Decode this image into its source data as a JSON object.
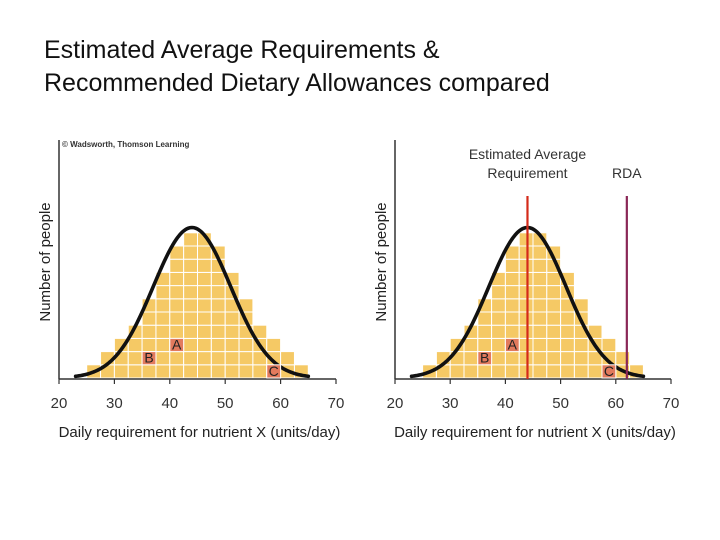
{
  "slide": {
    "title_line1": "Estimated Average Requirements &",
    "title_line2": "Recommended Dietary Allowances compared"
  },
  "colors": {
    "cell_fill": "#f5c965",
    "cell_line": "#ffffff",
    "curve": "#111111",
    "axis": "#333333",
    "ear_line": "#d42a1a",
    "rda_line": "#8a2757",
    "marker_fill": "#e27a5d",
    "marker_text": "#222222"
  },
  "chart_data": [
    {
      "type": "bar",
      "id": "left",
      "copyright": "© Wadsworth, Thomson Learning",
      "xlabel": "Daily requirement for nutrient X (units/day)",
      "ylabel": "Number of people",
      "xlim": [
        20,
        70
      ],
      "ylim": [
        0,
        14
      ],
      "xticks": [
        20,
        30,
        40,
        50,
        60,
        70
      ],
      "bin_width": 2.5,
      "bin_starts": [
        25,
        27.5,
        30,
        32.5,
        35,
        37.5,
        40,
        42.5,
        45,
        47.5,
        50,
        52.5,
        55,
        57.5,
        60,
        62.5
      ],
      "people": [
        1,
        2,
        3,
        4,
        6,
        8,
        10,
        11,
        11,
        10,
        8,
        6,
        4,
        3,
        2,
        1
      ],
      "curve": {
        "type": "normal",
        "mean": 44,
        "sd": 7,
        "peak": 11.4,
        "x_range": [
          23,
          65
        ]
      },
      "markers": [
        {
          "label": "A",
          "x": 40,
          "people": 3
        },
        {
          "label": "B",
          "x": 35,
          "people": 2
        },
        {
          "label": "C",
          "x": 57.5,
          "people": 1
        }
      ],
      "reference_lines": []
    },
    {
      "type": "bar",
      "id": "right",
      "xlabel": "Daily requirement for nutrient X (units/day)",
      "ylabel": "Number of people",
      "xlim": [
        20,
        70
      ],
      "ylim": [
        0,
        14
      ],
      "xticks": [
        20,
        30,
        40,
        50,
        60,
        70
      ],
      "bin_width": 2.5,
      "bin_starts": [
        25,
        27.5,
        30,
        32.5,
        35,
        37.5,
        40,
        42.5,
        45,
        47.5,
        50,
        52.5,
        55,
        57.5,
        60,
        62.5
      ],
      "people": [
        1,
        2,
        3,
        4,
        6,
        8,
        10,
        11,
        11,
        10,
        8,
        6,
        4,
        3,
        2,
        1
      ],
      "curve": {
        "type": "normal",
        "mean": 44,
        "sd": 7,
        "peak": 11.4,
        "x_range": [
          23,
          65
        ]
      },
      "markers": [
        {
          "label": "A",
          "x": 40,
          "people": 3
        },
        {
          "label": "B",
          "x": 35,
          "people": 2
        },
        {
          "label": "C",
          "x": 57.5,
          "people": 1
        }
      ],
      "reference_lines": [
        {
          "name": "ear",
          "label_line1": "Estimated Average",
          "label_line2": "Requirement",
          "x": 44,
          "color_key": "ear_line"
        },
        {
          "name": "rda",
          "label_line1": "RDA",
          "label_line2": "",
          "x": 62,
          "color_key": "rda_line"
        }
      ]
    }
  ]
}
